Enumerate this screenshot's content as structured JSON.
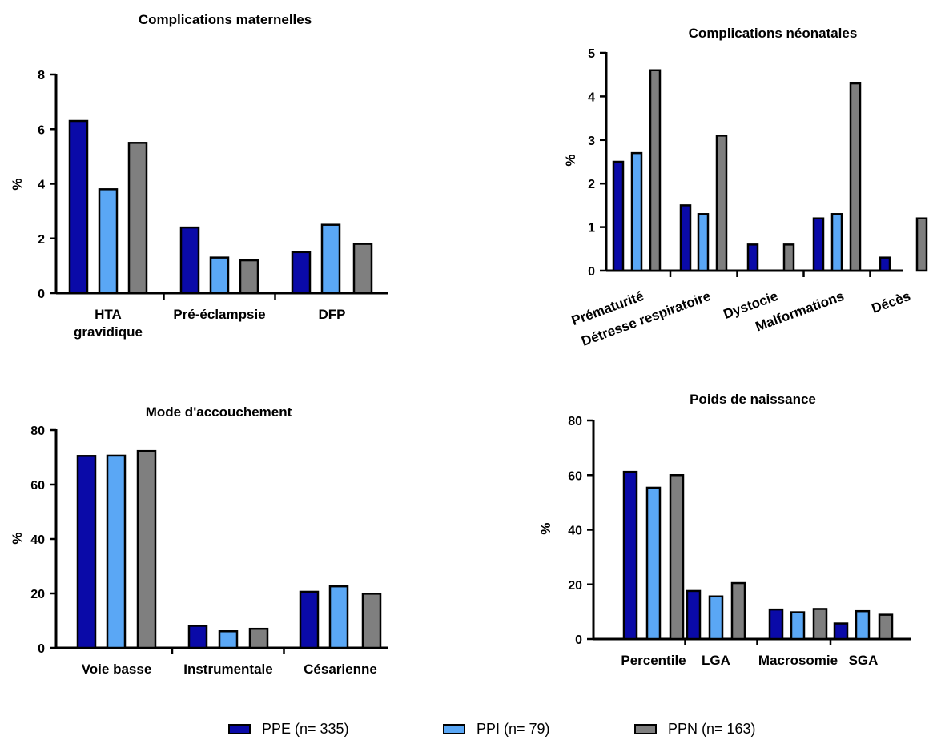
{
  "colors": {
    "PPE": "#0a0aa8",
    "PPI": "#5aa7f5",
    "PPN": "#7f7f7f"
  },
  "legend": {
    "items": [
      {
        "key": "PPE",
        "label": "PPE (n= 335)"
      },
      {
        "key": "PPI",
        "label": "PPI (n= 79)"
      },
      {
        "key": "PPN",
        "label": "PPN (n= 163)"
      }
    ]
  },
  "chart_data": [
    {
      "id": "mat",
      "type": "bar",
      "title": "Complications maternelles",
      "ylabel": "%",
      "ylim": [
        0,
        8
      ],
      "yticks": [
        "0",
        "2",
        "4",
        "6",
        "8"
      ],
      "categories": [
        "HTA\ngravidique",
        "Pré-éclampsie",
        "DFP"
      ],
      "series": [
        {
          "key": "PPE",
          "values": [
            6.3,
            2.4,
            1.5
          ]
        },
        {
          "key": "PPI",
          "values": [
            3.8,
            1.3,
            2.5
          ]
        },
        {
          "key": "PPN",
          "values": [
            5.5,
            1.2,
            1.8
          ]
        }
      ]
    },
    {
      "id": "neo",
      "type": "bar",
      "title": "Complications néonatales",
      "ylabel": "%",
      "ylim": [
        0,
        5
      ],
      "yticks": [
        "0",
        "1",
        "2",
        "3",
        "4",
        "5"
      ],
      "categories": [
        "Prématurité",
        "Détresse respiratoire",
        "Dystocie",
        "Malformations",
        "Décès"
      ],
      "series": [
        {
          "key": "PPE",
          "values": [
            2.5,
            1.5,
            0.6,
            1.2,
            0.3
          ]
        },
        {
          "key": "PPI",
          "values": [
            2.7,
            1.3,
            0,
            1.3,
            0
          ]
        },
        {
          "key": "PPN",
          "values": [
            4.6,
            3.1,
            0.6,
            4.3,
            1.2
          ]
        }
      ]
    },
    {
      "id": "mode",
      "type": "bar",
      "title": "Mode d'accouchement",
      "ylabel": "%",
      "ylim": [
        0,
        80
      ],
      "yticks": [
        "0",
        "20",
        "40",
        "60",
        "80"
      ],
      "categories": [
        "Voie basse",
        "Instrumentale",
        "Césarienne"
      ],
      "series": [
        {
          "key": "PPE",
          "values": [
            70.5,
            8.1,
            20.6
          ]
        },
        {
          "key": "PPI",
          "values": [
            70.6,
            6.1,
            22.6
          ]
        },
        {
          "key": "PPN",
          "values": [
            72.3,
            7.0,
            19.9
          ]
        }
      ]
    },
    {
      "id": "poids",
      "type": "bar",
      "title": "Poids de naissance",
      "ylabel": "%",
      "ylim": [
        0,
        80
      ],
      "yticks": [
        "0",
        "20",
        "40",
        "60",
        "80"
      ],
      "categories": [
        "Percentile",
        "LGA",
        "Macrosomie",
        "SGA"
      ],
      "series": [
        {
          "key": "PPE",
          "values": [
            61.2,
            17.6,
            10.8,
            5.7
          ]
        },
        {
          "key": "PPI",
          "values": [
            55.4,
            15.6,
            9.8,
            10.2
          ]
        },
        {
          "key": "PPN",
          "values": [
            60.0,
            20.5,
            11.0,
            8.9
          ]
        }
      ]
    }
  ]
}
